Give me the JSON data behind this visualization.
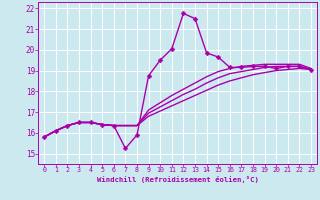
{
  "xlabel": "Windchill (Refroidissement éolien,°C)",
  "xlim": [
    -0.5,
    23.5
  ],
  "ylim": [
    14.5,
    22.3
  ],
  "yticks": [
    15,
    16,
    17,
    18,
    19,
    20,
    21,
    22
  ],
  "xticks": [
    0,
    1,
    2,
    3,
    4,
    5,
    6,
    7,
    8,
    9,
    10,
    11,
    12,
    13,
    14,
    15,
    16,
    17,
    18,
    19,
    20,
    21,
    22,
    23
  ],
  "bg_color": "#cce9f0",
  "grid_color": "#ffffff",
  "line_color": "#aa00aa",
  "markersize": 2.5,
  "linewidth": 1.0,
  "main_line_x": [
    0,
    1,
    2,
    3,
    4,
    5,
    6,
    7,
    8,
    9,
    10,
    11,
    12,
    13,
    14,
    15,
    16,
    17,
    18,
    19,
    20,
    21,
    22,
    23
  ],
  "main_line_y": [
    15.8,
    16.1,
    16.35,
    16.5,
    16.5,
    16.4,
    16.35,
    15.25,
    15.9,
    18.75,
    19.5,
    20.05,
    21.75,
    21.5,
    19.85,
    19.65,
    19.15,
    19.15,
    19.2,
    19.2,
    19.1,
    19.2,
    19.2,
    19.05
  ],
  "trend_lines": [
    {
      "x": [
        0,
        1,
        2,
        3,
        4,
        5,
        6,
        7,
        8,
        9,
        10,
        11,
        12,
        13,
        14,
        15,
        16,
        17,
        18,
        19,
        20,
        21,
        22,
        23
      ],
      "y": [
        15.8,
        16.1,
        16.35,
        16.5,
        16.5,
        16.4,
        16.35,
        16.35,
        16.35,
        16.8,
        17.05,
        17.3,
        17.55,
        17.8,
        18.05,
        18.3,
        18.5,
        18.65,
        18.8,
        18.9,
        19.0,
        19.05,
        19.1,
        19.05
      ]
    },
    {
      "x": [
        0,
        1,
        2,
        3,
        4,
        5,
        6,
        7,
        8,
        9,
        10,
        11,
        12,
        13,
        14,
        15,
        16,
        17,
        18,
        19,
        20,
        21,
        22,
        23
      ],
      "y": [
        15.8,
        16.1,
        16.35,
        16.5,
        16.5,
        16.4,
        16.35,
        16.35,
        16.35,
        16.95,
        17.25,
        17.55,
        17.85,
        18.1,
        18.4,
        18.65,
        18.85,
        18.95,
        19.05,
        19.15,
        19.2,
        19.2,
        19.2,
        19.05
      ]
    },
    {
      "x": [
        0,
        1,
        2,
        3,
        4,
        5,
        6,
        7,
        8,
        9,
        10,
        11,
        12,
        13,
        14,
        15,
        16,
        17,
        18,
        19,
        20,
        21,
        22,
        23
      ],
      "y": [
        15.8,
        16.1,
        16.35,
        16.5,
        16.5,
        16.4,
        16.35,
        16.35,
        16.35,
        17.1,
        17.45,
        17.8,
        18.1,
        18.4,
        18.7,
        18.95,
        19.1,
        19.2,
        19.25,
        19.3,
        19.3,
        19.3,
        19.3,
        19.1
      ]
    }
  ]
}
